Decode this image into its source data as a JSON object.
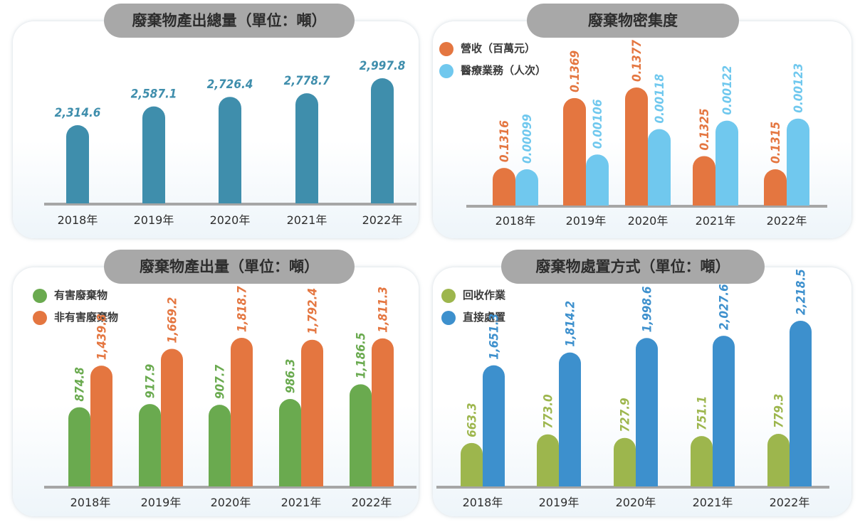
{
  "charts": [
    {
      "title": "廢棄物產出總量（單位：噸）",
      "chart_data": {
        "type": "bar",
        "categories": [
          "2018年",
          "2019年",
          "2020年",
          "2021年",
          "2022年"
        ],
        "series": [
          {
            "values": [
              2314.6,
              2587.1,
              2726.4,
              2778.7,
              2997.8
            ],
            "labels": [
              "2,314.6",
              "2,587.1",
              "2,726.4",
              "2,778.7",
              "2,997.8"
            ],
            "color": "#3f8eac"
          }
        ]
      }
    },
    {
      "title": "廢棄物密集度",
      "chart_data": {
        "type": "bar",
        "categories": [
          "2018年",
          "2019年",
          "2020年",
          "2021年",
          "2022年"
        ],
        "series": [
          {
            "name": "營收（百萬元）",
            "values": [
              0.1316,
              0.1369,
              0.1377,
              0.1325,
              0.1315
            ],
            "labels": [
              "0.1316",
              "0.1369",
              "0.1377",
              "0.1325",
              "0.1315"
            ],
            "color": "#e47640"
          },
          {
            "name": "醫療業務（人次）",
            "values": [
              0.00099,
              0.00106,
              0.00118,
              0.00122,
              0.00123
            ],
            "labels": [
              "0.00099",
              "0.00106",
              "0.00118",
              "0.00122",
              "0.00123"
            ],
            "color": "#70c8ee"
          }
        ]
      }
    },
    {
      "title": "廢棄物產出量（單位：噸）",
      "chart_data": {
        "type": "bar",
        "categories": [
          "2018年",
          "2019年",
          "2020年",
          "2021年",
          "2022年"
        ],
        "series": [
          {
            "name": "有害廢棄物",
            "values": [
              874.8,
              917.9,
              907.7,
              986.3,
              1186.5
            ],
            "labels": [
              "874.8",
              "917.9",
              "907.7",
              "986.3",
              "1,186.5"
            ],
            "color": "#6aaa4f"
          },
          {
            "name": "非有害廢棄物",
            "values": [
              1439.8,
              1669.2,
              1818.7,
              1792.4,
              1811.3
            ],
            "labels": [
              "1,439.8",
              "1,669.2",
              "1,818.7",
              "1,792.4",
              "1,811.3"
            ],
            "color": "#e47640"
          }
        ]
      }
    },
    {
      "title": "廢棄物處置方式（單位：噸）",
      "chart_data": {
        "type": "bar",
        "categories": [
          "2018年",
          "2019年",
          "2020年",
          "2021年",
          "2022年"
        ],
        "series": [
          {
            "name": "回收作業",
            "values": [
              663.3,
              773.0,
              727.9,
              751.1,
              779.3
            ],
            "labels": [
              "663.3",
              "773.0",
              "727.9",
              "751.1",
              "779.3"
            ],
            "color": "#9db64d"
          },
          {
            "name": "直接處置",
            "values": [
              1651.3,
              1814.2,
              1998.6,
              2027.6,
              2218.5
            ],
            "labels": [
              "1,651.3",
              "1,814.2",
              "1,998.6",
              "2,027.6",
              "2,218.5"
            ],
            "color": "#3d90cd"
          }
        ]
      }
    }
  ]
}
